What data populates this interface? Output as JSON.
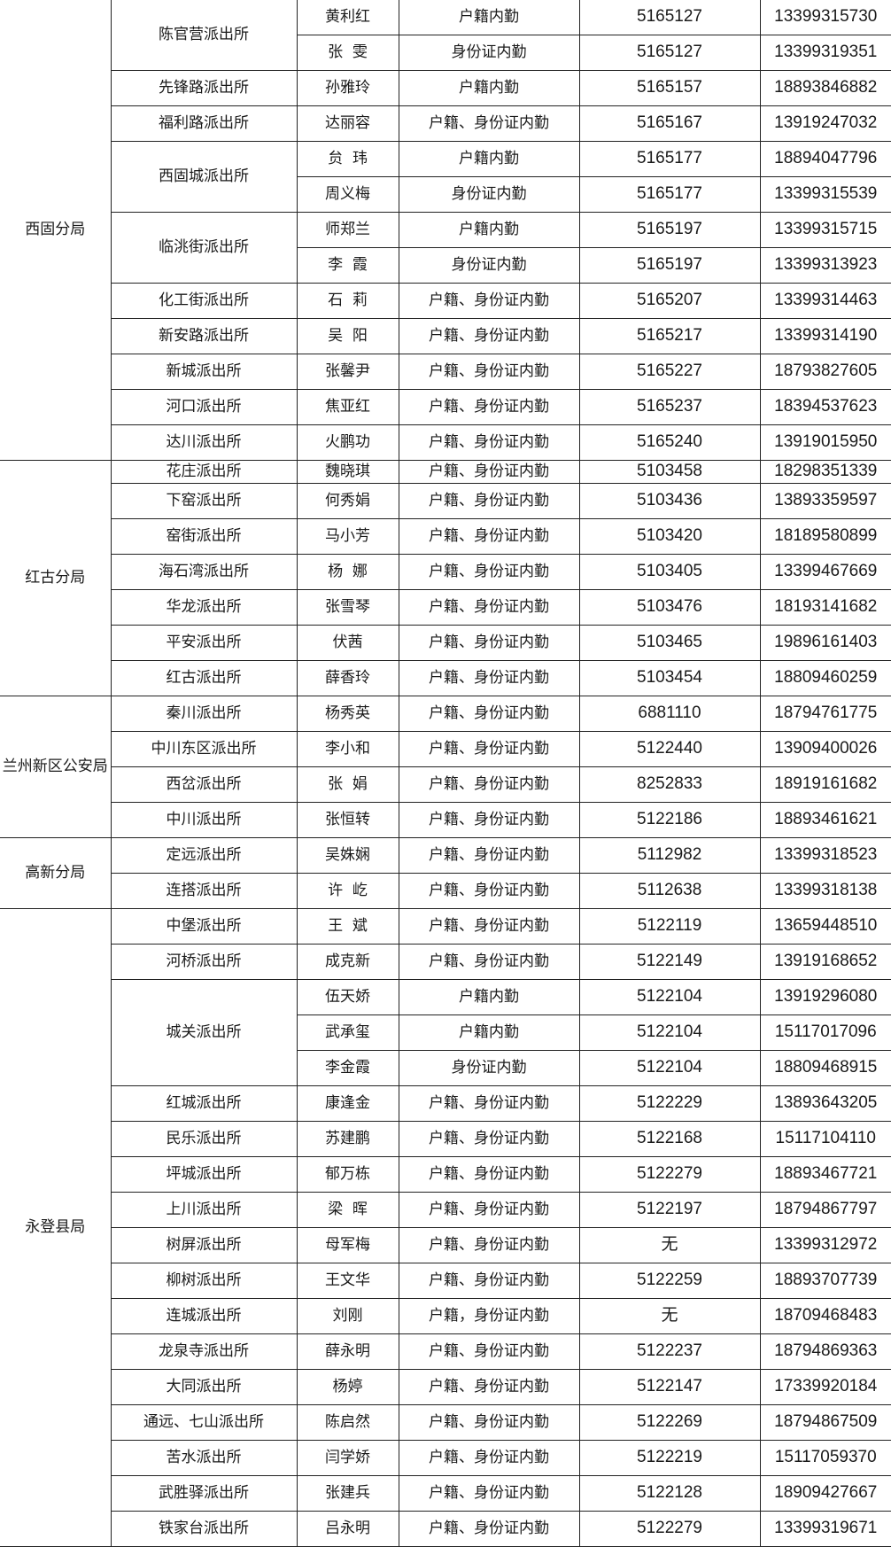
{
  "bureaus": [
    {
      "name": "西固分局",
      "stations": [
        {
          "name": "陈官营派出所",
          "staff": [
            {
              "name": "黄利红",
              "duty": "户籍内勤",
              "office": "5165127",
              "mobile": "13399315730"
            },
            {
              "name": "张  雯",
              "duty": "身份证内勤",
              "office": "5165127",
              "mobile": "13399319351"
            }
          ]
        },
        {
          "name": "先锋路派出所",
          "staff": [
            {
              "name": "孙雅玲",
              "duty": "户籍内勤",
              "office": "5165157",
              "mobile": "18893846882"
            }
          ]
        },
        {
          "name": "福利路派出所",
          "staff": [
            {
              "name": "达丽容",
              "duty": "户籍、身份证内勤",
              "office": "5165167",
              "mobile": "13919247032"
            }
          ]
        },
        {
          "name": "西固城派出所",
          "staff": [
            {
              "name": "贠  玮",
              "duty": "户籍内勤",
              "office": "5165177",
              "mobile": "18894047796"
            },
            {
              "name": "周义梅",
              "duty": "身份证内勤",
              "office": "5165177",
              "mobile": "13399315539"
            }
          ]
        },
        {
          "name": "临洮街派出所",
          "staff": [
            {
              "name": "师郑兰",
              "duty": "户籍内勤",
              "office": "5165197",
              "mobile": "13399315715"
            },
            {
              "name": "李  霞",
              "duty": "身份证内勤",
              "office": "5165197",
              "mobile": "13399313923"
            }
          ]
        },
        {
          "name": "化工街派出所",
          "staff": [
            {
              "name": "石  莉",
              "duty": "户籍、身份证内勤",
              "office": "5165207",
              "mobile": "13399314463"
            }
          ]
        },
        {
          "name": "新安路派出所",
          "staff": [
            {
              "name": "吴  阳",
              "duty": "户籍、身份证内勤",
              "office": "5165217",
              "mobile": "13399314190"
            }
          ]
        },
        {
          "name": "新城派出所",
          "staff": [
            {
              "name": "张馨尹",
              "duty": "户籍、身份证内勤",
              "office": "5165227",
              "mobile": "18793827605"
            }
          ]
        },
        {
          "name": "河口派出所",
          "staff": [
            {
              "name": "焦亚红",
              "duty": "户籍、身份证内勤",
              "office": "5165237",
              "mobile": "18394537623"
            }
          ]
        },
        {
          "name": "达川派出所",
          "staff": [
            {
              "name": "火鹏功",
              "duty": "户籍、身份证内勤",
              "office": "5165240",
              "mobile": "13919015950"
            }
          ]
        }
      ]
    },
    {
      "name": "红古分局",
      "stations": [
        {
          "name": "花庄派出所",
          "staff": [
            {
              "name": "魏晓琪",
              "duty": "户籍、身份证内勤",
              "office": "5103458",
              "mobile": "18298351339"
            }
          ]
        },
        {
          "name": "下窑派出所",
          "staff": [
            {
              "name": "何秀娟",
              "duty": "户籍、身份证内勤",
              "office": "5103436",
              "mobile": "13893359597"
            }
          ]
        },
        {
          "name": "窑街派出所",
          "staff": [
            {
              "name": "马小芳",
              "duty": "户籍、身份证内勤",
              "office": "5103420",
              "mobile": "18189580899"
            }
          ]
        },
        {
          "name": "海石湾派出所",
          "staff": [
            {
              "name": "杨  娜",
              "duty": "户籍、身份证内勤",
              "office": "5103405",
              "mobile": "13399467669"
            }
          ]
        },
        {
          "name": "华龙派出所",
          "staff": [
            {
              "name": "张雪琴",
              "duty": "户籍、身份证内勤",
              "office": "5103476",
              "mobile": "18193141682"
            }
          ]
        },
        {
          "name": "平安派出所",
          "staff": [
            {
              "name": "伏茜",
              "duty": "户籍、身份证内勤",
              "office": "5103465",
              "mobile": "19896161403"
            }
          ]
        },
        {
          "name": "红古派出所",
          "staff": [
            {
              "name": "薛香玲",
              "duty": "户籍、身份证内勤",
              "office": "5103454",
              "mobile": "18809460259"
            }
          ]
        }
      ]
    },
    {
      "name": "兰州新区公安局",
      "stations": [
        {
          "name": "秦川派出所",
          "staff": [
            {
              "name": "杨秀英",
              "duty": "户籍、身份证内勤",
              "office": "6881110",
              "mobile": "18794761775"
            }
          ]
        },
        {
          "name": "中川东区派出所",
          "staff": [
            {
              "name": "李小和",
              "duty": "户籍、身份证内勤",
              "office": "5122440",
              "mobile": "13909400026"
            }
          ]
        },
        {
          "name": "西岔派出所",
          "staff": [
            {
              "name": "张  娟",
              "duty": "户籍、身份证内勤",
              "office": "8252833",
              "mobile": "18919161682"
            }
          ]
        },
        {
          "name": "中川派出所",
          "staff": [
            {
              "name": "张恒转",
              "duty": "户籍、身份证内勤",
              "office": "5122186",
              "mobile": "18893461621"
            }
          ]
        }
      ]
    },
    {
      "name": "高新分局",
      "stations": [
        {
          "name": "定远派出所",
          "staff": [
            {
              "name": "吴姝娴",
              "duty": "户籍、身份证内勤",
              "office": "5112982",
              "mobile": "13399318523"
            }
          ]
        },
        {
          "name": "连搭派出所",
          "staff": [
            {
              "name": "许  屹",
              "duty": "户籍、身份证内勤",
              "office": "5112638",
              "mobile": "13399318138"
            }
          ]
        }
      ]
    },
    {
      "name": "永登县局",
      "stations": [
        {
          "name": "中堡派出所",
          "staff": [
            {
              "name": "王  斌",
              "duty": "户籍、身份证内勤",
              "office": "5122119",
              "mobile": "13659448510"
            }
          ]
        },
        {
          "name": "河桥派出所",
          "staff": [
            {
              "name": "成克新",
              "duty": "户籍、身份证内勤",
              "office": "5122149",
              "mobile": "13919168652"
            }
          ]
        },
        {
          "name": "城关派出所",
          "staff": [
            {
              "name": "伍天娇",
              "duty": "户籍内勤",
              "office": "5122104",
              "mobile": "13919296080"
            },
            {
              "name": "武承玺",
              "duty": "户籍内勤",
              "office": "5122104",
              "mobile": "15117017096"
            },
            {
              "name": "李金霞",
              "duty": "身份证内勤",
              "office": "5122104",
              "mobile": "18809468915"
            }
          ]
        },
        {
          "name": "红城派出所",
          "staff": [
            {
              "name": "康逢金",
              "duty": "户籍、身份证内勤",
              "office": "5122229",
              "mobile": "13893643205"
            }
          ]
        },
        {
          "name": "民乐派出所",
          "staff": [
            {
              "name": "苏建鹏",
              "duty": "户籍、身份证内勤",
              "office": "5122168",
              "mobile": "15117104110"
            }
          ]
        },
        {
          "name": "坪城派出所",
          "staff": [
            {
              "name": "郁万栋",
              "duty": "户籍、身份证内勤",
              "office": "5122279",
              "mobile": "18893467721"
            }
          ]
        },
        {
          "name": "上川派出所",
          "staff": [
            {
              "name": "梁  晖",
              "duty": "户籍、身份证内勤",
              "office": "5122197",
              "mobile": "18794867797"
            }
          ]
        },
        {
          "name": "树屏派出所",
          "staff": [
            {
              "name": "母军梅",
              "duty": "户籍、身份证内勤",
              "office": "无",
              "mobile": "13399312972"
            }
          ]
        },
        {
          "name": "柳树派出所",
          "staff": [
            {
              "name": "王文华",
              "duty": "户籍、身份证内勤",
              "office": "5122259",
              "mobile": "18893707739"
            }
          ]
        },
        {
          "name": "连城派出所",
          "staff": [
            {
              "name": "刘刚",
              "duty": "户籍，身份证内勤",
              "office": "无",
              "mobile": "18709468483"
            }
          ]
        },
        {
          "name": "龙泉寺派出所",
          "staff": [
            {
              "name": "薛永明",
              "duty": "户籍、身份证内勤",
              "office": "5122237",
              "mobile": "18794869363"
            }
          ]
        },
        {
          "name": "大同派出所",
          "staff": [
            {
              "name": "杨婷",
              "duty": "户籍、身份证内勤",
              "office": "5122147",
              "mobile": "17339920184"
            }
          ]
        },
        {
          "name": "通远、七山派出所",
          "staff": [
            {
              "name": "陈启然",
              "duty": "户籍、身份证内勤",
              "office": "5122269",
              "mobile": "18794867509"
            }
          ]
        },
        {
          "name": "苦水派出所",
          "staff": [
            {
              "name": "闫学娇",
              "duty": "户籍、身份证内勤",
              "office": "5122219",
              "mobile": "15117059370"
            }
          ]
        },
        {
          "name": "武胜驿派出所",
          "staff": [
            {
              "name": "张建兵",
              "duty": "户籍、身份证内勤",
              "office": "5122128",
              "mobile": "18909427667"
            }
          ]
        },
        {
          "name": "铁家台派出所",
          "staff": [
            {
              "name": "吕永明",
              "duty": "户籍、身份证内勤",
              "office": "5122279",
              "mobile": "13399319671"
            }
          ]
        }
      ]
    }
  ]
}
